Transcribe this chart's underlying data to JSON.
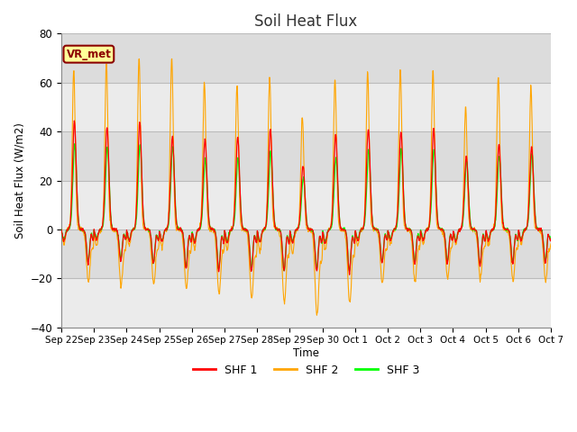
{
  "title": "Soil Heat Flux",
  "ylabel": "Soil Heat Flux (W/m2)",
  "xlabel": "Time",
  "ylim": [
    -40,
    80
  ],
  "legend_labels": [
    "SHF 1",
    "SHF 2",
    "SHF 3"
  ],
  "annotation_text": "VR_met",
  "annotation_bg": "#FFFF99",
  "annotation_border": "#8B0000",
  "plot_bg": "#DCDCDC",
  "fig_bg": "#FFFFFF",
  "grid_color": "#C8C8C8",
  "yticks": [
    -40,
    -20,
    0,
    20,
    40,
    60,
    80
  ],
  "n_days": 15,
  "n_points_per_day": 96,
  "shf1_peaks": [
    44,
    42,
    44,
    38,
    37,
    38,
    41,
    26,
    39,
    41,
    40,
    41,
    30,
    35,
    34
  ],
  "shf2_peaks": [
    65,
    68,
    70,
    70,
    60,
    59,
    62,
    46,
    61,
    64,
    65,
    65,
    50,
    63,
    58
  ],
  "shf3_peaks": [
    35,
    34,
    35,
    34,
    29,
    29,
    32,
    21,
    29,
    33,
    33,
    33,
    28,
    30,
    31
  ],
  "shf1_troughs": [
    -14,
    -13,
    -14,
    -16,
    -17,
    -17,
    -17,
    -17,
    -18,
    -14,
    -14,
    -14,
    -15,
    -14,
    -14
  ],
  "shf2_troughs": [
    -21,
    -23,
    -22,
    -24,
    -26,
    -28,
    -30,
    -35,
    -30,
    -22,
    -21,
    -20,
    -20,
    -21,
    -21
  ],
  "shf3_troughs": [
    -13,
    -12,
    -14,
    -15,
    -16,
    -16,
    -17,
    -16,
    -17,
    -13,
    -13,
    -13,
    -14,
    -13,
    -13
  ],
  "xtick_labels": [
    "Sep 22",
    "Sep 23",
    "Sep 24",
    "Sep 25",
    "Sep 26",
    "Sep 27",
    "Sep 28",
    "Sep 29",
    "Sep 30",
    "Oct 1",
    "Oct 2",
    "Oct 3",
    "Oct 4",
    "Oct 5",
    "Oct 6",
    "Oct 7"
  ]
}
